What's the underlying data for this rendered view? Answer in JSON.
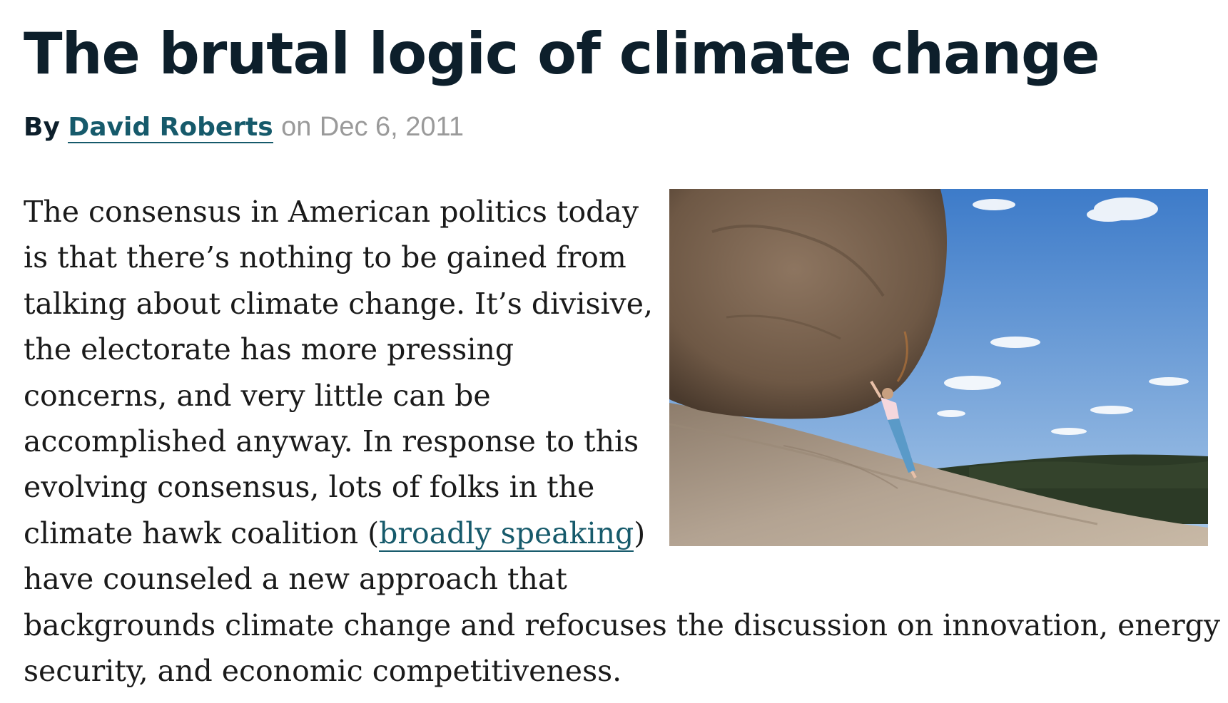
{
  "article": {
    "headline": "The brutal logic of climate change",
    "byline": {
      "by": "By",
      "author": "David Roberts",
      "on": "on",
      "date": "Dec 6, 2011"
    },
    "image": {
      "icon": "boulder-push-photo",
      "colors": {
        "sky_top": "#3d7bc9",
        "sky_bottom": "#a9c8e8",
        "rock": "#7d6650",
        "hill": "#2c3a26",
        "ground": "#a89886"
      }
    },
    "paragraph": {
      "lines": [
        "The consensus in American politics today",
        "is that there’s nothing to be gained from",
        "talking about climate change. It’s divisive,",
        "the electorate has more pressing",
        "concerns, and very little can be",
        "accomplished anyway. In response to this",
        "evolving consensus, lots of folks in the"
      ],
      "line8_before": "climate hawk coalition (",
      "link_text": "broadly speaking",
      "line8_after": ")",
      "lines_after": [
        "have counseled a new approach that",
        "backgrounds climate change and refocuses the discussion on innovation, energy",
        "security, and economic competitiveness."
      ]
    }
  }
}
